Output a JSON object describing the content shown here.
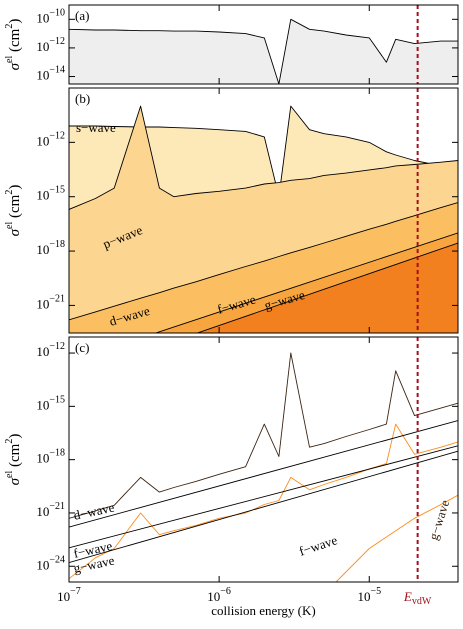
{
  "chart_data": [
    {
      "type": "line",
      "label": "(a)",
      "log_x": true,
      "log_y": true,
      "ylabel": [
        "σ",
        "el",
        " (cm",
        "2",
        ")"
      ],
      "ylim": [
        3e-15,
        1e-09
      ],
      "yticks": [
        {
          "value": 1e-10,
          "label": "10",
          "exp": "−10"
        },
        {
          "value": 1e-12,
          "label": "10",
          "exp": "−12"
        },
        {
          "value": 1e-14,
          "label": "10",
          "exp": "−14"
        }
      ],
      "x": [
        1e-07,
        1.5e-07,
        2e-07,
        3e-07,
        4e-07,
        5e-07,
        7e-07,
        1e-06,
        1.5e-06,
        2e-06,
        2.5e-06,
        3e-06,
        4e-06,
        5e-06,
        7e-06,
        1e-05,
        1.3e-05,
        1.5e-05,
        2e-05,
        3e-05,
        3.9e-05
      ],
      "series": [
        {
          "color": "#000000",
          "fill": "#eeeeee",
          "values": [
            2e-11,
            1.8e-11,
            1.8e-11,
            1.6e-11,
            1.6e-11,
            1.5e-11,
            1.5e-11,
            1.3e-11,
            1e-11,
            5e-12,
            3e-15,
            1e-10,
            2e-11,
            1.5e-11,
            8e-12,
            5e-12,
            1e-13,
            4e-12,
            2e-12,
            3e-12,
            3e-12
          ]
        }
      ]
    },
    {
      "type": "line",
      "label": "(b)",
      "log_x": true,
      "log_y": true,
      "ylabel": [
        "σ",
        "el",
        " (cm",
        "2",
        ")"
      ],
      "ylim": [
        3e-23,
        1e-09
      ],
      "yticks": [
        {
          "value": 1e-12,
          "label": "10",
          "exp": "−12"
        },
        {
          "value": 1e-15,
          "label": "10",
          "exp": "−15"
        },
        {
          "value": 1e-18,
          "label": "10",
          "exp": "−18"
        },
        {
          "value": 1e-21,
          "label": "10",
          "exp": "−21"
        }
      ],
      "x": [
        1e-07,
        1.5e-07,
        2e-07,
        3e-07,
        4e-07,
        5e-07,
        7e-07,
        1e-06,
        1.5e-06,
        2e-06,
        2.5e-06,
        3e-06,
        4e-06,
        5e-06,
        7e-06,
        1e-05,
        1.3e-05,
        1.5e-05,
        2e-05,
        3e-05,
        3.9e-05
      ],
      "series": [
        {
          "name": "s−wave",
          "color": "#000000",
          "fill": "#fde8b8",
          "values": [
            8e-12,
            8e-12,
            7.5e-12,
            7e-12,
            7e-12,
            6.5e-12,
            6e-12,
            5e-12,
            4e-12,
            2e-12,
            1e-15,
            1e-10,
            5e-12,
            3e-12,
            2e-12,
            1e-12,
            3e-13,
            2e-13,
            1e-13,
            5e-14,
            3e-14
          ]
        },
        {
          "name": "p−wave",
          "color": "#000000",
          "fill": "#fcd590",
          "values": [
            2e-16,
            8e-16,
            3e-15,
            1e-10,
            3e-15,
            1e-15,
            1.5e-15,
            2e-15,
            3e-15,
            5e-15,
            6e-15,
            8e-15,
            1e-14,
            1.5e-14,
            2e-14,
            3e-14,
            4e-14,
            5e-14,
            6e-14,
            8e-14,
            1e-13
          ]
        },
        {
          "name": "d−wave",
          "color": "#000000",
          "fill": "#fbbf62",
          "values": [
            1.6e-22,
            4.4e-22,
            9e-22,
            2.5e-21,
            5e-21,
            9e-21,
            2e-20,
            5e-20,
            1.4e-19,
            2.8e-19,
            5e-19,
            8e-19,
            1.6e-18,
            2.8e-18,
            6.5e-18,
            1.6e-17,
            3e-17,
            4.4e-17,
            9e-17,
            2.5e-16,
            4.8e-16
          ]
        },
        {
          "name": "f−wave",
          "color": "#000000",
          "fill": "#f8a540",
          "x": [
            3.7e-07,
            3.9e-05
          ],
          "values": [
            2.8e-23,
            1e-17
          ]
        },
        {
          "name": "g−wave",
          "color": "#000000",
          "fill": "#f2801f",
          "x": [
            7e-07,
            3.9e-05
          ],
          "values": [
            2.8e-23,
            2.8e-18
          ]
        }
      ]
    },
    {
      "type": "line",
      "label": "(c)",
      "log_x": true,
      "log_y": true,
      "ylabel": [
        "σ",
        "el",
        " (cm",
        "2",
        ")"
      ],
      "xlabel": "collision energy (K)",
      "xlim": [
        1e-07,
        3.9e-05
      ],
      "xticks": [
        {
          "value": 1e-07,
          "label": "10",
          "exp": "−7"
        },
        {
          "value": 1e-06,
          "label": "10",
          "exp": "−6"
        },
        {
          "value": 1e-05,
          "label": "10",
          "exp": "−5"
        }
      ],
      "ylim": [
        1.3e-25,
        8e-12
      ],
      "yticks": [
        {
          "value": 1e-12,
          "label": "10",
          "exp": "−12"
        },
        {
          "value": 1e-15,
          "label": "10",
          "exp": "−15"
        },
        {
          "value": 1e-18,
          "label": "10",
          "exp": "−18"
        },
        {
          "value": 1e-21,
          "label": "10",
          "exp": "−21"
        },
        {
          "value": 1e-24,
          "label": "10",
          "exp": "−24"
        }
      ],
      "x": [
        1e-07,
        1.5e-07,
        2e-07,
        3e-07,
        4e-07,
        5e-07,
        7e-07,
        1e-06,
        1.5e-06,
        2e-06,
        2.5e-06,
        3e-06,
        4e-06,
        5e-06,
        7e-06,
        1e-05,
        1.3e-05,
        1.5e-05,
        2e-05,
        3e-05,
        3.9e-05
      ],
      "series": [
        {
          "color": "#ff8c1a",
          "values": [
            2e-25,
            3e-24,
            1e-23,
            1e-21,
            6e-23,
            1e-22,
            2e-22,
            5e-22,
            1e-21,
            3e-21,
            5e-21,
            1e-19,
            2e-20,
            4e-20,
            1e-19,
            3e-19,
            6e-19,
            1e-16,
            2e-18,
            5e-18,
            1e-17
          ]
        },
        {
          "name": "g−wave",
          "color": "#ff8c1a",
          "x": [
            6e-06,
            1e-05,
            1.5e-05,
            2e-05,
            3e-05,
            3.9e-05
          ],
          "values": [
            1.3e-25,
            1e-23,
            1e-22,
            5e-22,
            3e-21,
            1e-20
          ]
        },
        {
          "color": "#3a2413",
          "values": [
            5e-22,
            1.3e-21,
            2.7e-21,
            1e-19,
            1.5e-20,
            2.7e-20,
            6e-20,
            1.5e-19,
            4e-19,
            1e-16,
            1.5e-18,
            1e-12,
            5e-18,
            8e-18,
            2e-17,
            5e-17,
            1e-16,
            1e-13,
            3e-16,
            8e-16,
            1.5e-15
          ]
        },
        {
          "name": "d−wave",
          "color": "#000000",
          "x": [
            1e-07,
            3.9e-05
          ],
          "values": [
            1.6e-22,
            1.6e-16
          ]
        },
        {
          "name": "f−wave",
          "color": "#000000",
          "x": [
            1e-07,
            3.9e-05
          ],
          "values": [
            1.1e-23,
            6e-18
          ]
        },
        {
          "name": "g−wave",
          "color": "#000000",
          "x": [
            1e-07,
            3.9e-05
          ],
          "values": [
            1.6e-24,
            3e-18
          ]
        }
      ],
      "annotations": [
        {
          "text": "f−wave",
          "color": "#000000"
        }
      ]
    }
  ],
  "vdw": {
    "x": 2.1e-05,
    "label": "E",
    "sub": "vdW",
    "color": "#a5101c"
  }
}
